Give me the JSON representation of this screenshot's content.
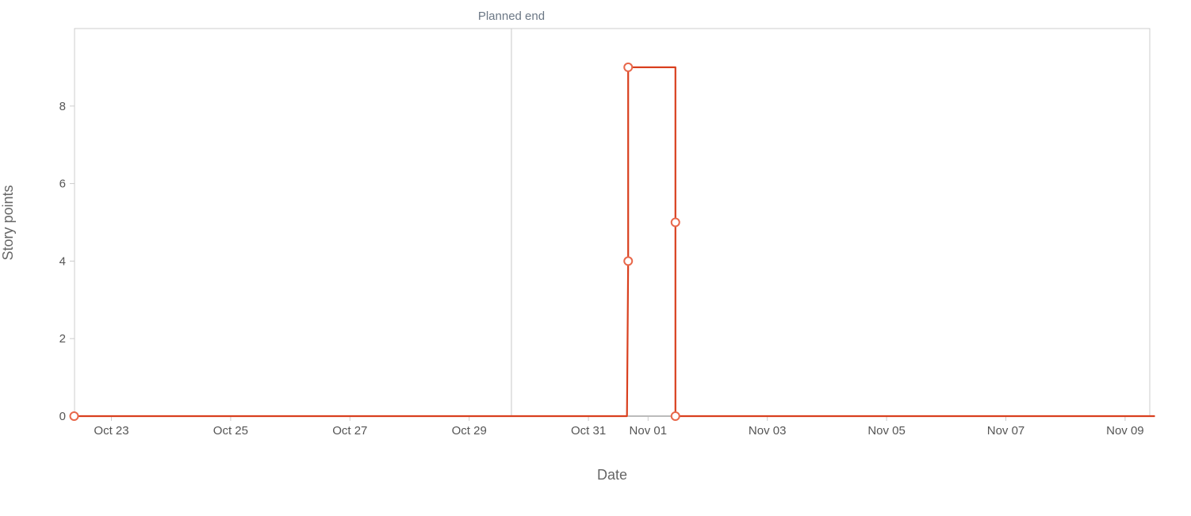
{
  "chart_data": {
    "type": "line",
    "step": true,
    "xlabel": "Date",
    "ylabel": "Story points",
    "x_ticks": [
      "Oct 23",
      "Oct 25",
      "Oct 27",
      "Oct 29",
      "Oct 31",
      "Nov 01",
      "Nov 03",
      "Nov 05",
      "Nov 07",
      "Nov 09"
    ],
    "x_tick_dates": [
      "2023-10-23",
      "2023-10-25",
      "2023-10-27",
      "2023-10-29",
      "2023-10-31",
      "2023-11-01",
      "2023-11-03",
      "2023-11-05",
      "2023-11-07",
      "2023-11-09"
    ],
    "y_ticks": [
      0,
      2,
      4,
      6,
      8
    ],
    "xlim": [
      "2023-10-22T09:00",
      "2023-11-09T12:00"
    ],
    "ylim": [
      0,
      10
    ],
    "grid": false,
    "annotations": [
      {
        "label": "Planned end",
        "x": "2023-10-29T17:00"
      }
    ],
    "series": [
      {
        "color": "#d9401f",
        "marker_color": "#e8674a",
        "points": [
          {
            "x": "2023-10-22T09:00",
            "y": 0,
            "marker": true
          },
          {
            "x": "2023-10-31T15:30",
            "y": 0,
            "marker": false
          },
          {
            "x": "2023-10-31T16:00",
            "y": 4,
            "marker": true
          },
          {
            "x": "2023-10-31T16:00",
            "y": 9,
            "marker": true
          },
          {
            "x": "2023-11-01T11:00",
            "y": 9,
            "marker": false
          },
          {
            "x": "2023-11-01T11:00",
            "y": 5,
            "marker": true
          },
          {
            "x": "2023-11-01T11:00",
            "y": 0,
            "marker": true
          },
          {
            "x": "2023-11-09T12:00",
            "y": 0,
            "marker": false
          }
        ]
      }
    ],
    "colors": {
      "frame": "#cccccc",
      "annotation_line": "#c8c8c8",
      "baseline_gap": "#bbbbbb"
    }
  }
}
